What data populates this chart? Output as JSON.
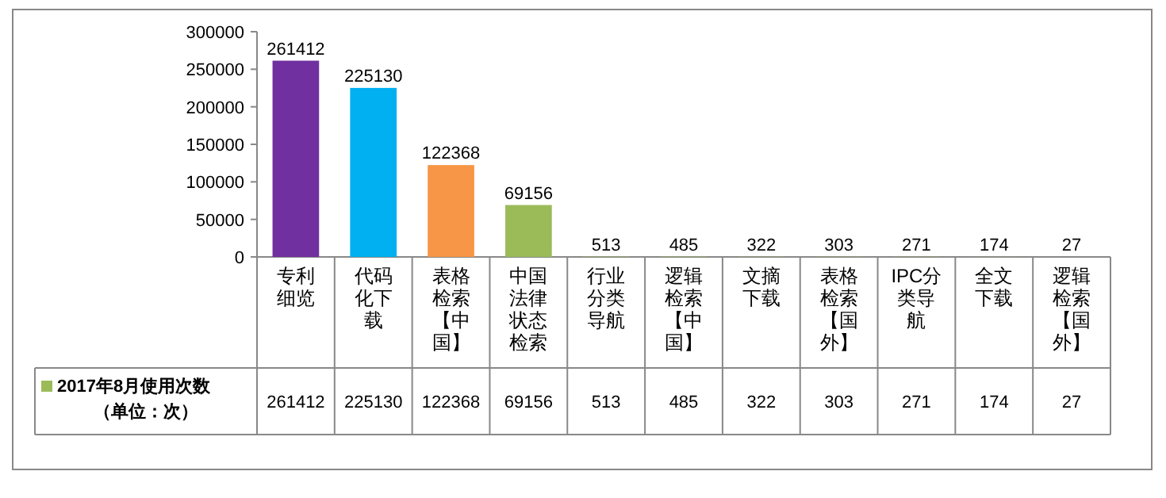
{
  "chart_data": {
    "type": "bar",
    "categories": [
      "专利细览",
      "代码化下载",
      "表格检索【中国】",
      "中国法律状态检索",
      "行业分类导航",
      "逻辑检索【中国】",
      "文摘下载",
      "表格检索【国外】",
      "IPC分类导航",
      "全文下载",
      "逻辑检索【国外】"
    ],
    "series": [
      {
        "name": "2017年8月使用次数（单位：次）",
        "color": "#9bbb59",
        "colors": [
          "#7030a0",
          "#00b0f0",
          "#f79646",
          "#9bbb59",
          "#9bbb59",
          "#9bbb59",
          "#9bbb59",
          "#9bbb59",
          "#9bbb59",
          "#9bbb59",
          "#9bbb59"
        ],
        "values": [
          261412,
          225130,
          122368,
          69156,
          513,
          485,
          322,
          303,
          271,
          174,
          27
        ],
        "value_labels": [
          "261412",
          "225130",
          "122368",
          "69156",
          "513",
          "485",
          "322",
          "303",
          "271",
          "174",
          "27"
        ]
      }
    ],
    "ylim": [
      0,
      300000
    ],
    "yticks": [
      0,
      50000,
      100000,
      150000,
      200000,
      250000,
      300000
    ],
    "data_labels": true,
    "legend": "bottom left"
  }
}
